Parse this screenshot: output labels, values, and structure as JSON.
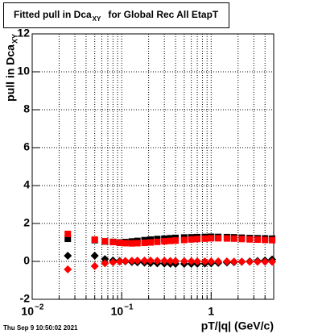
{
  "chart_data": {
    "type": "scatter",
    "title": "Fitted pull in Dca",
    "title_subscript": "XY",
    "title_rest": "for Global Rec All EtapT",
    "ylabel": "pull in Dca",
    "ylabel_subscript": "XY",
    "xlabel": "pT/|q| (GeV/c)",
    "footer": "Thu Sep  9 10:50:02 2021",
    "xscale": "log",
    "grid": true,
    "xlim": [
      0.01,
      5
    ],
    "ylim": [
      -2,
      12
    ],
    "xticks": [
      {
        "value": 0.01,
        "label": "10",
        "exponent": "−2"
      },
      {
        "value": 0.1,
        "label": "10",
        "exponent": "−1"
      },
      1
    ],
    "xminorticks": [
      0.02,
      0.03,
      0.04,
      0.05,
      0.06,
      0.07,
      0.08,
      0.09,
      0.2,
      0.3,
      0.4,
      0.5,
      0.6,
      0.7,
      0.8,
      0.9,
      2,
      3,
      4,
      5
    ],
    "yticks": [
      -2,
      0,
      2,
      4,
      6,
      8,
      10,
      12
    ],
    "x": [
      0.025,
      0.05,
      0.065,
      0.08,
      0.095,
      0.11,
      0.13,
      0.15,
      0.18,
      0.21,
      0.25,
      0.3,
      0.35,
      0.4,
      0.5,
      0.6,
      0.7,
      0.85,
      1.0,
      1.2,
      1.5,
      1.8,
      2.2,
      2.7,
      3.3,
      4.0,
      4.8
    ],
    "series": [
      {
        "color": "#000000",
        "marker": "square",
        "values": [
          1.19,
          1.12,
          1.05,
          1.03,
          1.0,
          1.02,
          1.05,
          1.08,
          1.12,
          1.15,
          1.18,
          1.2,
          1.22,
          1.24,
          1.26,
          1.27,
          1.28,
          1.29,
          1.3,
          1.29,
          1.28,
          1.27,
          1.25,
          1.23,
          1.22,
          1.21,
          1.2
        ]
      },
      {
        "color": "#000000",
        "marker": "diamond",
        "values": [
          0.3,
          0.3,
          0.12,
          0.05,
          0.02,
          0,
          -0.03,
          -0.05,
          -0.07,
          -0.09,
          -0.1,
          -0.11,
          -0.12,
          -0.13,
          -0.13,
          -0.13,
          -0.12,
          -0.11,
          -0.1,
          -0.08,
          -0.06,
          -0.04,
          -0.02,
          0,
          0.02,
          0.05,
          0.1
        ]
      },
      {
        "color": "#ff0000",
        "marker": "square",
        "values": [
          1.45,
          1.15,
          1.06,
          1.02,
          0.98,
          0.96,
          0.95,
          0.96,
          0.98,
          1.0,
          1.03,
          1.06,
          1.08,
          1.1,
          1.13,
          1.16,
          1.18,
          1.2,
          1.22,
          1.22,
          1.21,
          1.2,
          1.18,
          1.16,
          1.15,
          1.13,
          1.12
        ]
      },
      {
        "color": "#ff0000",
        "marker": "diamond",
        "values": [
          -0.42,
          -0.25,
          -0.1,
          -0.05,
          -0.01,
          0.02,
          0.03,
          0.04,
          0.04,
          0.04,
          0.03,
          0.03,
          0.02,
          0.02,
          0.01,
          0.01,
          0,
          0,
          0,
          0,
          0,
          -0.01,
          -0.01,
          -0.02,
          -0.02,
          -0.02,
          -0.02
        ]
      }
    ]
  }
}
